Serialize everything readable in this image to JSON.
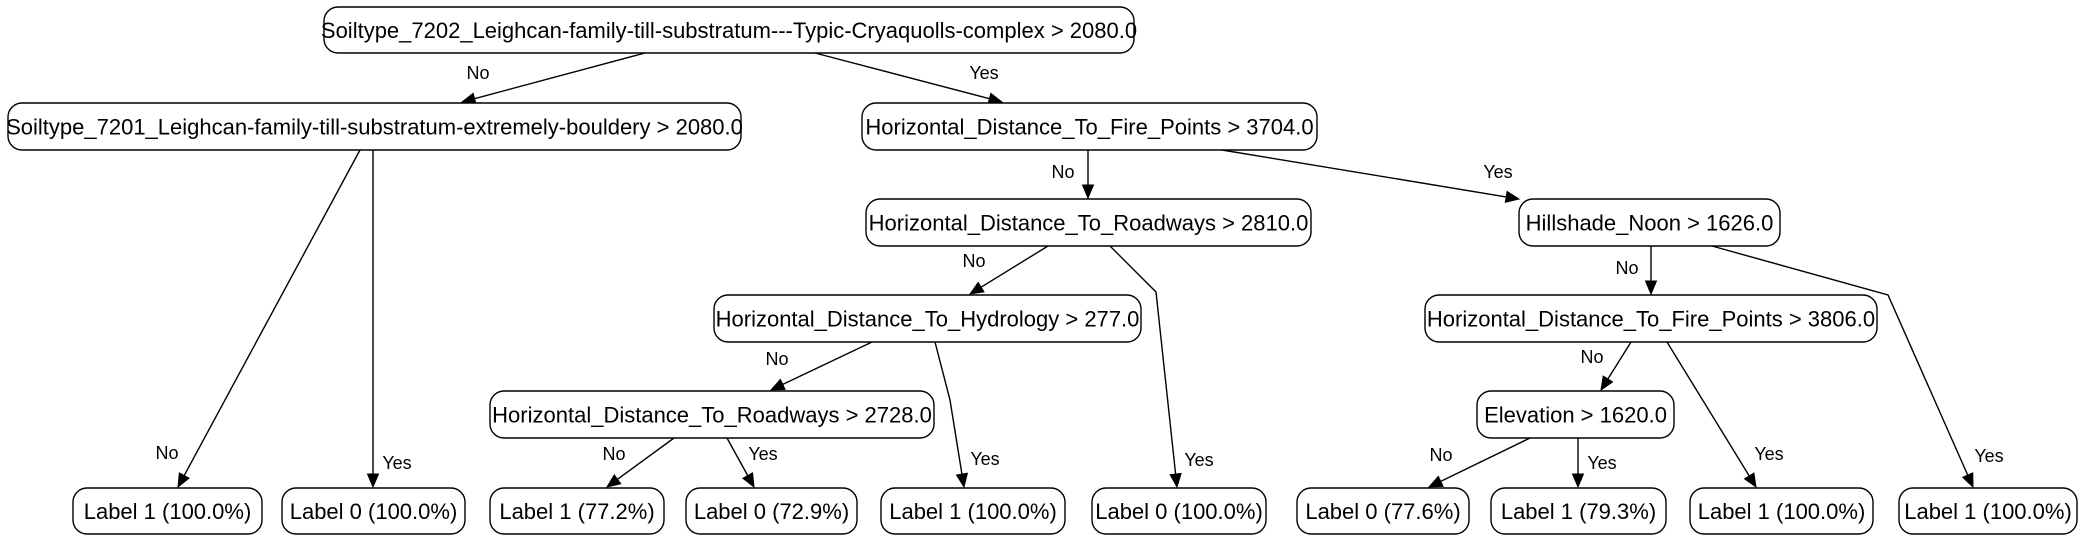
{
  "diagram": {
    "nodes": [
      {
        "id": "n0",
        "label": "Soiltype_7202_Leighcan-family-till-substratum---Typic-Cryaquolls-complex > 2080.0"
      },
      {
        "id": "n1",
        "label": "Soiltype_7201_Leighcan-family-till-substratum-extremely-bouldery > 2080.0"
      },
      {
        "id": "n2",
        "label": "Horizontal_Distance_To_Fire_Points > 3704.0"
      },
      {
        "id": "n3",
        "label": "Horizontal_Distance_To_Roadways > 2810.0"
      },
      {
        "id": "n4",
        "label": "Hillshade_Noon > 1626.0"
      },
      {
        "id": "n5",
        "label": "Horizontal_Distance_To_Hydrology > 277.0"
      },
      {
        "id": "n6",
        "label": "Horizontal_Distance_To_Fire_Points > 3806.0"
      },
      {
        "id": "n7",
        "label": "Horizontal_Distance_To_Roadways > 2728.0"
      },
      {
        "id": "n8",
        "label": "Elevation > 1620.0"
      },
      {
        "id": "l1",
        "label": "Label 1 (100.0%)"
      },
      {
        "id": "l2",
        "label": "Label 0 (100.0%)"
      },
      {
        "id": "l3",
        "label": "Label 1 (77.2%)"
      },
      {
        "id": "l4",
        "label": "Label 0 (72.9%)"
      },
      {
        "id": "l5",
        "label": "Label 1 (100.0%)"
      },
      {
        "id": "l6",
        "label": "Label 0 (100.0%)"
      },
      {
        "id": "l7",
        "label": "Label 0 (77.6%)"
      },
      {
        "id": "l8",
        "label": "Label 1 (79.3%)"
      },
      {
        "id": "l9",
        "label": "Label 1 (100.0%)"
      },
      {
        "id": "l10",
        "label": "Label 1 (100.0%)"
      }
    ],
    "edges": [
      {
        "from": "n0",
        "to": "n1",
        "label": "No"
      },
      {
        "from": "n0",
        "to": "n2",
        "label": "Yes"
      },
      {
        "from": "n1",
        "to": "l1",
        "label": "No"
      },
      {
        "from": "n1",
        "to": "l2",
        "label": "Yes"
      },
      {
        "from": "n2",
        "to": "n3",
        "label": "No"
      },
      {
        "from": "n2",
        "to": "n4",
        "label": "Yes"
      },
      {
        "from": "n3",
        "to": "n5",
        "label": "No"
      },
      {
        "from": "n3",
        "to": "l6",
        "label": "Yes"
      },
      {
        "from": "n5",
        "to": "n7",
        "label": "No"
      },
      {
        "from": "n5",
        "to": "l5",
        "label": "Yes"
      },
      {
        "from": "n7",
        "to": "l3",
        "label": "No"
      },
      {
        "from": "n7",
        "to": "l4",
        "label": "Yes"
      },
      {
        "from": "n4",
        "to": "n6",
        "label": "No"
      },
      {
        "from": "n4",
        "to": "l10",
        "label": "Yes"
      },
      {
        "from": "n6",
        "to": "n8",
        "label": "No"
      },
      {
        "from": "n6",
        "to": "l9",
        "label": "Yes"
      },
      {
        "from": "n8",
        "to": "l7",
        "label": "No"
      },
      {
        "from": "n8",
        "to": "l8",
        "label": "Yes"
      }
    ]
  }
}
